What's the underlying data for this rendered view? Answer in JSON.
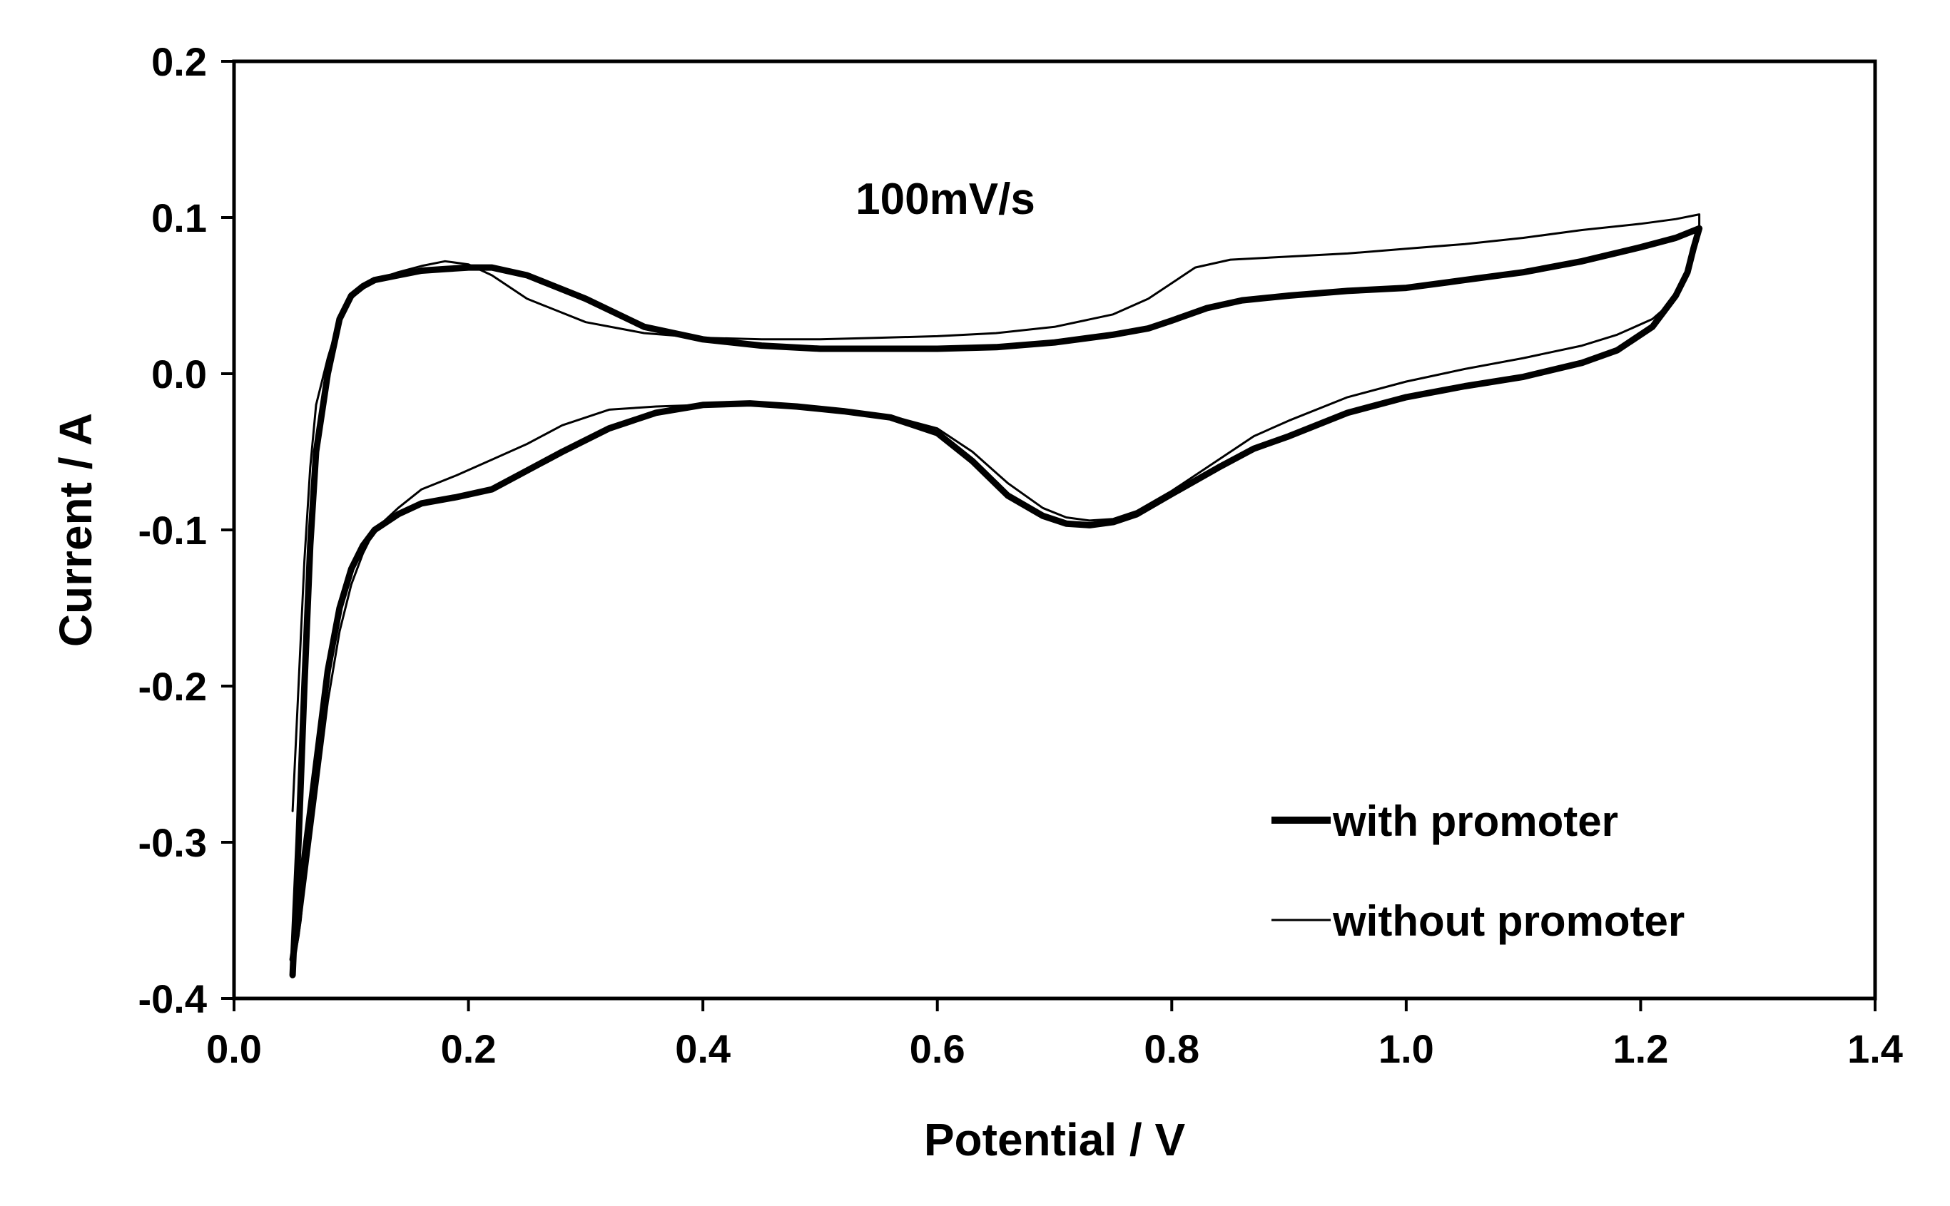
{
  "chart_data": {
    "type": "line",
    "title": "",
    "annotation": "100mV/s",
    "xlabel": "Potential / V",
    "ylabel": "Current / A",
    "xlim": [
      0.0,
      1.4
    ],
    "ylim": [
      -0.4,
      0.2
    ],
    "xticks": [
      "0.0",
      "0.2",
      "0.4",
      "0.6",
      "0.8",
      "1.0",
      "1.2",
      "1.4"
    ],
    "yticks": [
      "0.2",
      "0.1",
      "0.0",
      "-0.1",
      "-0.2",
      "-0.3",
      "-0.4"
    ],
    "grid": false,
    "legend_position": "bottom-right",
    "series": [
      {
        "name": "with promoter",
        "style": "thick",
        "color": "#000000",
        "x": [
          0.05,
          0.055,
          0.06,
          0.065,
          0.07,
          0.08,
          0.09,
          0.1,
          0.11,
          0.12,
          0.14,
          0.16,
          0.18,
          0.2,
          0.22,
          0.25,
          0.3,
          0.35,
          0.4,
          0.45,
          0.5,
          0.55,
          0.6,
          0.65,
          0.7,
          0.75,
          0.78,
          0.8,
          0.83,
          0.86,
          0.9,
          0.95,
          1.0,
          1.05,
          1.1,
          1.15,
          1.2,
          1.23,
          1.25,
          1.25,
          1.245,
          1.24,
          1.23,
          1.21,
          1.18,
          1.15,
          1.1,
          1.05,
          1.0,
          0.95,
          0.9,
          0.87,
          0.84,
          0.8,
          0.77,
          0.75,
          0.73,
          0.71,
          0.69,
          0.66,
          0.63,
          0.6,
          0.56,
          0.52,
          0.48,
          0.44,
          0.4,
          0.36,
          0.32,
          0.28,
          0.25,
          0.22,
          0.19,
          0.16,
          0.14,
          0.12,
          0.11,
          0.1,
          0.09,
          0.08,
          0.07,
          0.06,
          0.055,
          0.05
        ],
        "y": [
          -0.385,
          -0.3,
          -0.2,
          -0.11,
          -0.05,
          0.0,
          0.035,
          0.05,
          0.056,
          0.06,
          0.063,
          0.066,
          0.067,
          0.068,
          0.068,
          0.063,
          0.048,
          0.03,
          0.022,
          0.018,
          0.016,
          0.016,
          0.016,
          0.017,
          0.02,
          0.025,
          0.029,
          0.034,
          0.042,
          0.047,
          0.05,
          0.053,
          0.055,
          0.06,
          0.065,
          0.072,
          0.081,
          0.087,
          0.093,
          0.093,
          0.08,
          0.065,
          0.05,
          0.03,
          0.015,
          0.007,
          -0.002,
          -0.008,
          -0.015,
          -0.025,
          -0.04,
          -0.048,
          -0.06,
          -0.077,
          -0.09,
          -0.095,
          -0.097,
          -0.096,
          -0.091,
          -0.078,
          -0.056,
          -0.038,
          -0.028,
          -0.024,
          -0.021,
          -0.019,
          -0.02,
          -0.025,
          -0.035,
          -0.05,
          -0.062,
          -0.074,
          -0.079,
          -0.083,
          -0.09,
          -0.1,
          -0.11,
          -0.125,
          -0.15,
          -0.19,
          -0.25,
          -0.31,
          -0.35,
          -0.375
        ]
      },
      {
        "name": "without promoter",
        "style": "thin",
        "color": "#000000",
        "x": [
          0.05,
          0.055,
          0.06,
          0.065,
          0.07,
          0.08,
          0.09,
          0.1,
          0.11,
          0.12,
          0.14,
          0.16,
          0.18,
          0.2,
          0.22,
          0.25,
          0.3,
          0.35,
          0.4,
          0.45,
          0.5,
          0.55,
          0.6,
          0.65,
          0.7,
          0.75,
          0.78,
          0.8,
          0.82,
          0.85,
          0.9,
          0.95,
          1.0,
          1.05,
          1.1,
          1.15,
          1.2,
          1.23,
          1.25,
          1.25,
          1.245,
          1.24,
          1.23,
          1.21,
          1.18,
          1.15,
          1.1,
          1.05,
          1.0,
          0.95,
          0.9,
          0.87,
          0.84,
          0.8,
          0.77,
          0.75,
          0.73,
          0.71,
          0.69,
          0.66,
          0.63,
          0.6,
          0.56,
          0.52,
          0.48,
          0.44,
          0.4,
          0.36,
          0.32,
          0.28,
          0.25,
          0.22,
          0.19,
          0.16,
          0.14,
          0.12,
          0.11,
          0.1,
          0.09,
          0.08,
          0.07,
          0.06,
          0.055,
          0.05
        ],
        "y": [
          -0.28,
          -0.2,
          -0.12,
          -0.06,
          -0.02,
          0.01,
          0.035,
          0.048,
          0.055,
          0.06,
          0.065,
          0.069,
          0.072,
          0.07,
          0.063,
          0.048,
          0.033,
          0.026,
          0.023,
          0.022,
          0.022,
          0.023,
          0.024,
          0.026,
          0.03,
          0.038,
          0.048,
          0.058,
          0.068,
          0.073,
          0.075,
          0.077,
          0.08,
          0.083,
          0.087,
          0.092,
          0.096,
          0.099,
          0.102,
          0.09,
          0.075,
          0.062,
          0.048,
          0.035,
          0.025,
          0.018,
          0.01,
          0.003,
          -0.005,
          -0.015,
          -0.03,
          -0.04,
          -0.055,
          -0.075,
          -0.088,
          -0.093,
          -0.094,
          -0.092,
          -0.086,
          -0.07,
          -0.05,
          -0.035,
          -0.027,
          -0.023,
          -0.021,
          -0.02,
          -0.02,
          -0.021,
          -0.023,
          -0.033,
          -0.045,
          -0.055,
          -0.065,
          -0.074,
          -0.086,
          -0.1,
          -0.115,
          -0.135,
          -0.165,
          -0.21,
          -0.27,
          -0.33,
          -0.36,
          -0.38
        ]
      }
    ]
  }
}
